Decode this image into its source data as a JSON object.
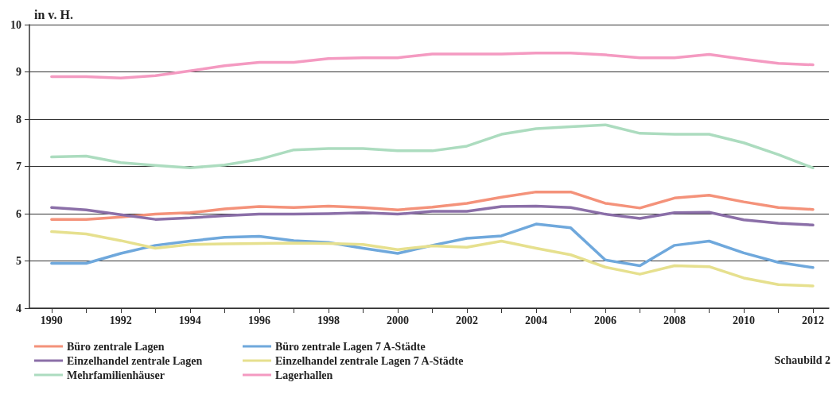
{
  "chart_data": {
    "type": "line",
    "ylabel": "in v. H.",
    "annotations": [
      "Schaubild 2"
    ],
    "x": [
      1990,
      1991,
      1992,
      1993,
      1994,
      1995,
      1996,
      1997,
      1998,
      1999,
      2000,
      2001,
      2002,
      2003,
      2004,
      2005,
      2006,
      2007,
      2008,
      2009,
      2010,
      2011,
      2012
    ],
    "xlim": [
      1989.36,
      2012.46
    ],
    "xticks": [
      1990,
      {
        "value": 1991,
        "label": null
      },
      1992,
      {
        "value": 1993,
        "label": null
      },
      1994,
      {
        "value": 1995,
        "label": null
      },
      1996,
      {
        "value": 1997,
        "label": null
      },
      1998,
      {
        "value": 1999,
        "label": null
      },
      2000,
      {
        "value": 2001,
        "label": null
      },
      2002,
      {
        "value": 2003,
        "label": null
      },
      2004,
      {
        "value": 2005,
        "label": null
      },
      2006,
      {
        "value": 2007,
        "label": null
      },
      2008,
      {
        "value": 2009,
        "label": null
      },
      2010,
      {
        "value": 2011,
        "label": null
      },
      2012
    ],
    "ylim": [
      4,
      10
    ],
    "yticks": [
      4,
      5,
      6,
      7,
      8,
      9,
      10
    ],
    "grid": "y",
    "legend": "bottom",
    "marker": "none",
    "line_style": "solid",
    "series": [
      {
        "name": "Büro zentrale Lagen",
        "color": "#f4927a",
        "values": [
          5.88,
          5.88,
          5.93,
          5.99,
          6.02,
          6.1,
          6.15,
          6.13,
          6.16,
          6.13,
          6.08,
          6.14,
          6.22,
          6.35,
          6.46,
          6.46,
          6.22,
          6.12,
          6.33,
          6.39,
          6.25,
          6.13,
          6.09
        ]
      },
      {
        "name": "Büro zentrale Lagen 7 A-Städte",
        "color": "#6fa8dc",
        "values": [
          4.95,
          4.95,
          5.16,
          5.33,
          5.42,
          5.5,
          5.52,
          5.43,
          5.39,
          5.27,
          5.16,
          5.33,
          5.48,
          5.53,
          5.78,
          5.7,
          5.02,
          4.9,
          5.33,
          5.42,
          5.17,
          4.97,
          4.86
        ]
      },
      {
        "name": "Einzelhandel zentrale Lagen",
        "color": "#8b6fa8",
        "values": [
          6.13,
          6.08,
          5.98,
          5.88,
          5.91,
          5.96,
          5.99,
          5.99,
          6.0,
          6.02,
          5.99,
          6.05,
          6.05,
          6.15,
          6.16,
          6.13,
          5.99,
          5.9,
          6.02,
          6.03,
          5.87,
          5.8,
          5.76
        ]
      },
      {
        "name": "Einzelhandel zentrale Lagen 7 A-Städte",
        "color": "#e6e08e",
        "values": [
          5.62,
          5.57,
          5.43,
          5.27,
          5.35,
          5.36,
          5.37,
          5.38,
          5.37,
          5.35,
          5.24,
          5.32,
          5.29,
          5.42,
          5.27,
          5.13,
          4.87,
          4.72,
          4.9,
          4.88,
          4.64,
          4.5,
          4.47
        ]
      },
      {
        "name": "Mehrfamilienhäuser",
        "color": "#acdcbf",
        "values": [
          7.2,
          7.22,
          7.08,
          7.02,
          6.97,
          7.03,
          7.15,
          7.35,
          7.38,
          7.38,
          7.33,
          7.33,
          7.43,
          7.68,
          7.8,
          7.84,
          7.88,
          7.7,
          7.68,
          7.68,
          7.5,
          7.25,
          6.97
        ]
      },
      {
        "name": "Lagerhallen",
        "color": "#f49ac1",
        "values": [
          8.9,
          8.9,
          8.87,
          8.92,
          9.02,
          9.13,
          9.2,
          9.2,
          9.28,
          9.3,
          9.3,
          9.38,
          9.38,
          9.38,
          9.4,
          9.4,
          9.36,
          9.3,
          9.3,
          9.37,
          9.27,
          9.18,
          9.15
        ]
      }
    ]
  }
}
